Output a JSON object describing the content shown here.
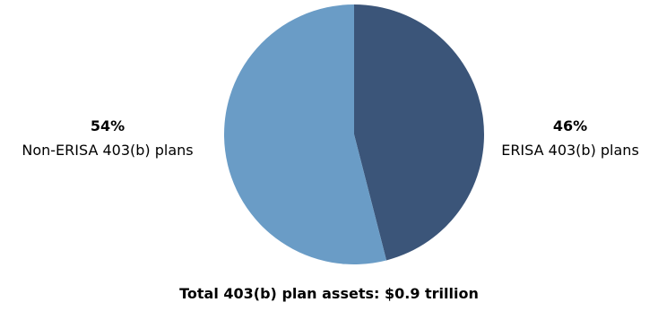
{
  "chart_data": {
    "type": "pie",
    "title": "Total 403(b) plan assets: $0.9 trillion",
    "slices": [
      {
        "name": "ERISA 403(b) plans",
        "pct_label": "46%",
        "value": 46,
        "color": "#3b5579"
      },
      {
        "name": "Non-ERISA 403(b) plans",
        "pct_label": "54%",
        "value": 54,
        "color": "#6a9cc6"
      }
    ]
  }
}
